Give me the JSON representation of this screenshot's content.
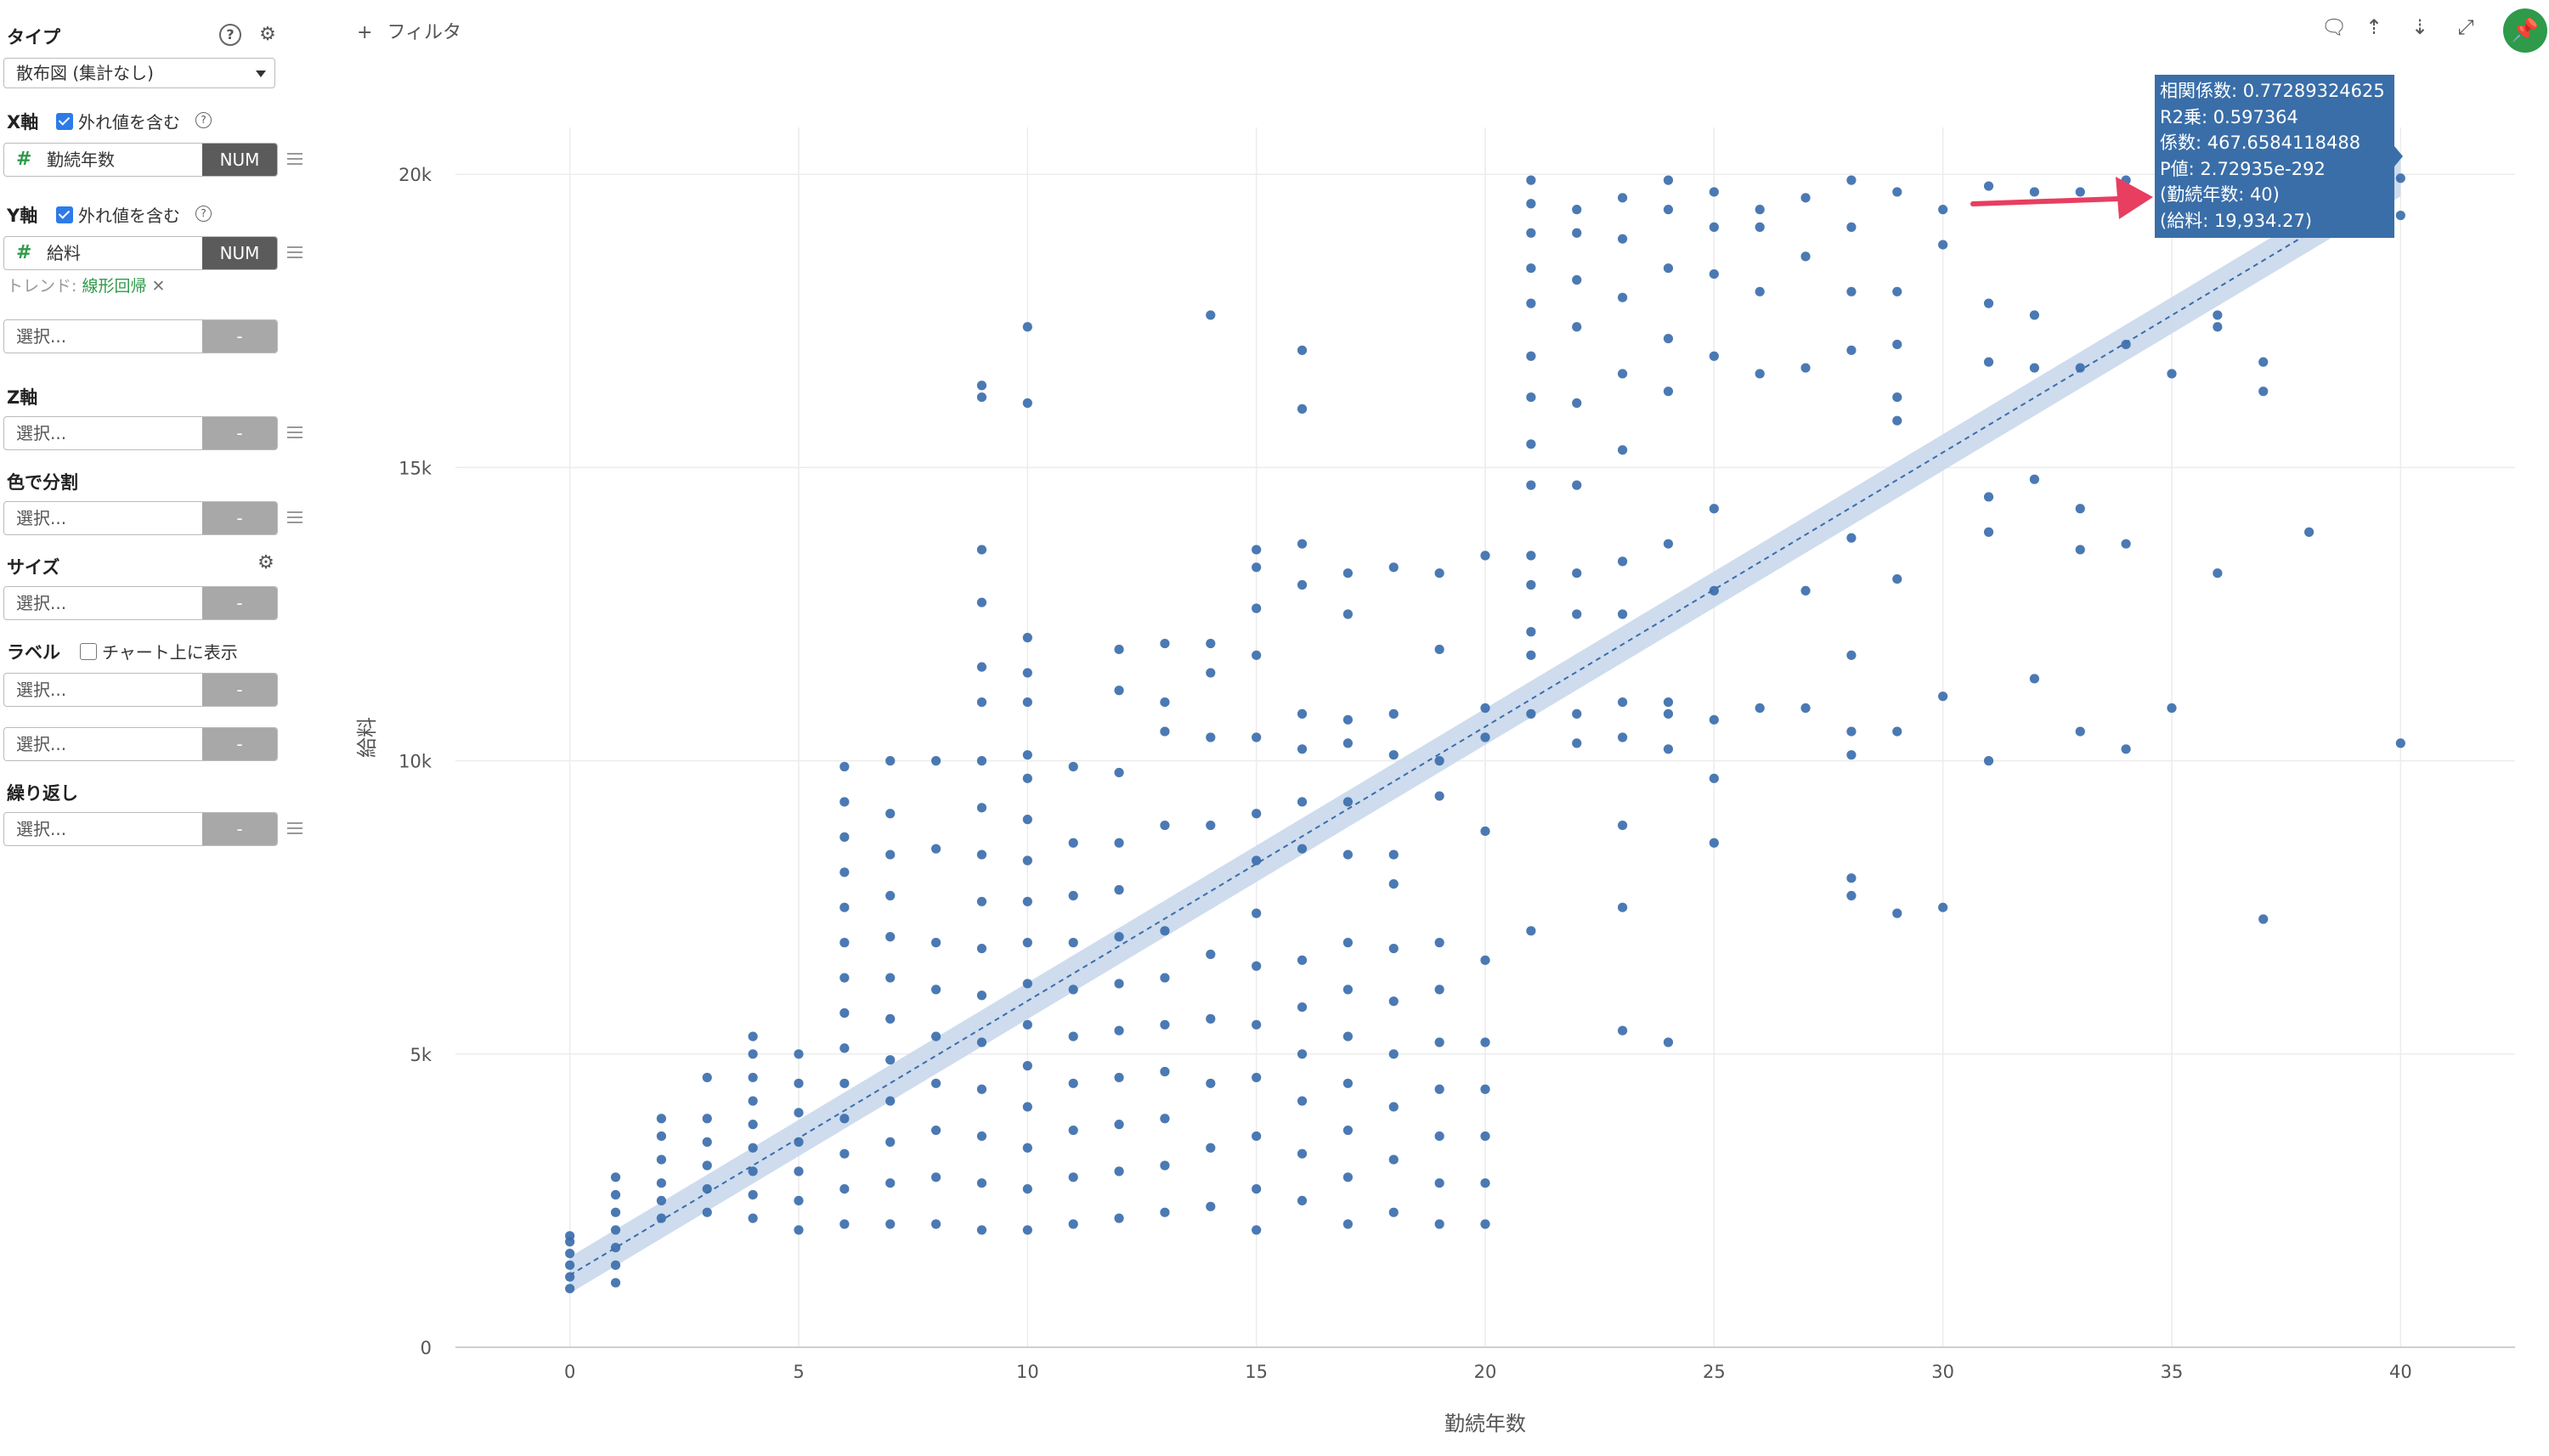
{
  "sidebar": {
    "type_section": {
      "title": "タイプ",
      "value": "散布図 (集計なし)"
    },
    "x_axis": {
      "title": "X軸",
      "include_outliers": "外れ値を含む",
      "column": "勤続年数",
      "col_type": "NUM"
    },
    "y_axis": {
      "title": "Y軸",
      "include_outliers": "外れ値を含む",
      "column": "給料",
      "col_type": "NUM"
    },
    "trend": {
      "label": "トレンド: ",
      "value": "線形回帰",
      "remove": "✕"
    },
    "extra_select": {
      "placeholder": "選択...",
      "tag": "-"
    },
    "z_axis": {
      "title": "Z軸",
      "placeholder": "選択...",
      "tag": "-"
    },
    "color_split": {
      "title": "色で分割",
      "placeholder": "選択...",
      "tag": "-"
    },
    "size": {
      "title": "サイズ",
      "placeholder": "選択...",
      "tag": "-"
    },
    "label": {
      "title": "ラベル",
      "show_on_chart": "チャート上に表示",
      "placeholder1": "選択...",
      "placeholder2": "選択...",
      "tag": "-"
    },
    "repeat": {
      "title": "繰り返し",
      "placeholder": "選択...",
      "tag": "-"
    }
  },
  "toolbar": {
    "filter_label": "フィルタ",
    "filter_plus": "+"
  },
  "tooltip": {
    "lines": [
      "相関係数: 0.77289324625",
      "R2乗: 0.597364",
      "係数: 467.6584118488",
      "P値: 2.72935e-292",
      "(勤続年数: 40)",
      "(給料: 19,934.27)"
    ]
  },
  "chart_data": {
    "type": "scatter",
    "xlabel": "勤続年数",
    "ylabel": "給料",
    "xlim": [
      -2.5,
      42.5
    ],
    "ylim": [
      0,
      20800
    ],
    "xticks": [
      0,
      5,
      10,
      15,
      20,
      25,
      30,
      35,
      40
    ],
    "yticks": [
      0,
      5000,
      10000,
      15000,
      20000
    ],
    "yticklabels": [
      "0",
      "5k",
      "10k",
      "15k",
      "20k"
    ],
    "grid": true,
    "point_color": "#3c6eac",
    "trend": {
      "type": "linear regression",
      "x": [
        0,
        40
      ],
      "y": [
        1230,
        19934
      ],
      "band_color": "#c9d8ec"
    },
    "points": [
      [
        0,
        1000
      ],
      [
        0,
        1200
      ],
      [
        0,
        1400
      ],
      [
        0,
        1600
      ],
      [
        0,
        1800
      ],
      [
        0,
        1900
      ],
      [
        1,
        1100
      ],
      [
        1,
        1400
      ],
      [
        1,
        1700
      ],
      [
        1,
        2000
      ],
      [
        1,
        2300
      ],
      [
        1,
        2600
      ],
      [
        1,
        2900
      ],
      [
        2,
        2200
      ],
      [
        2,
        2500
      ],
      [
        2,
        2800
      ],
      [
        2,
        3200
      ],
      [
        2,
        3600
      ],
      [
        2,
        3900
      ],
      [
        3,
        2300
      ],
      [
        3,
        2700
      ],
      [
        3,
        3100
      ],
      [
        3,
        3500
      ],
      [
        3,
        3900
      ],
      [
        3,
        4600
      ],
      [
        4,
        2200
      ],
      [
        4,
        2600
      ],
      [
        4,
        3000
      ],
      [
        4,
        3400
      ],
      [
        4,
        3800
      ],
      [
        4,
        4200
      ],
      [
        4,
        4600
      ],
      [
        4,
        5000
      ],
      [
        4,
        5300
      ],
      [
        5,
        2000
      ],
      [
        5,
        2500
      ],
      [
        5,
        3000
      ],
      [
        5,
        3500
      ],
      [
        5,
        4000
      ],
      [
        5,
        4500
      ],
      [
        5,
        5000
      ],
      [
        6,
        2100
      ],
      [
        6,
        2700
      ],
      [
        6,
        3300
      ],
      [
        6,
        3900
      ],
      [
        6,
        4500
      ],
      [
        6,
        5100
      ],
      [
        6,
        5700
      ],
      [
        6,
        6300
      ],
      [
        6,
        6900
      ],
      [
        6,
        7500
      ],
      [
        6,
        8100
      ],
      [
        6,
        8700
      ],
      [
        6,
        9300
      ],
      [
        6,
        9900
      ],
      [
        7,
        2100
      ],
      [
        7,
        2800
      ],
      [
        7,
        3500
      ],
      [
        7,
        4200
      ],
      [
        7,
        4900
      ],
      [
        7,
        5600
      ],
      [
        7,
        6300
      ],
      [
        7,
        7000
      ],
      [
        7,
        7700
      ],
      [
        7,
        8400
      ],
      [
        7,
        9100
      ],
      [
        7,
        10000
      ],
      [
        8,
        2100
      ],
      [
        8,
        2900
      ],
      [
        8,
        3700
      ],
      [
        8,
        4500
      ],
      [
        8,
        5300
      ],
      [
        8,
        6100
      ],
      [
        8,
        6900
      ],
      [
        8,
        8500
      ],
      [
        8,
        10000
      ],
      [
        9,
        2000
      ],
      [
        9,
        2800
      ],
      [
        9,
        3600
      ],
      [
        9,
        4400
      ],
      [
        9,
        5200
      ],
      [
        9,
        6000
      ],
      [
        9,
        6800
      ],
      [
        9,
        7600
      ],
      [
        9,
        8400
      ],
      [
        9,
        9200
      ],
      [
        9,
        10000
      ],
      [
        9,
        11000
      ],
      [
        9,
        11600
      ],
      [
        9,
        12700
      ],
      [
        9,
        13600
      ],
      [
        9,
        16200
      ],
      [
        9,
        16400
      ],
      [
        10,
        2000
      ],
      [
        10,
        2700
      ],
      [
        10,
        3400
      ],
      [
        10,
        4100
      ],
      [
        10,
        4800
      ],
      [
        10,
        5500
      ],
      [
        10,
        6200
      ],
      [
        10,
        6900
      ],
      [
        10,
        7600
      ],
      [
        10,
        8300
      ],
      [
        10,
        9000
      ],
      [
        10,
        9700
      ],
      [
        10,
        10100
      ],
      [
        10,
        11000
      ],
      [
        10,
        11500
      ],
      [
        10,
        12100
      ],
      [
        10,
        16100
      ],
      [
        10,
        17400
      ],
      [
        11,
        2100
      ],
      [
        11,
        2900
      ],
      [
        11,
        3700
      ],
      [
        11,
        4500
      ],
      [
        11,
        5300
      ],
      [
        11,
        6100
      ],
      [
        11,
        6900
      ],
      [
        11,
        7700
      ],
      [
        11,
        8600
      ],
      [
        11,
        9900
      ],
      [
        12,
        2200
      ],
      [
        12,
        3000
      ],
      [
        12,
        3800
      ],
      [
        12,
        4600
      ],
      [
        12,
        5400
      ],
      [
        12,
        6200
      ],
      [
        12,
        7000
      ],
      [
        12,
        7800
      ],
      [
        12,
        8600
      ],
      [
        12,
        9800
      ],
      [
        12,
        11200
      ],
      [
        12,
        11900
      ],
      [
        13,
        2300
      ],
      [
        13,
        3100
      ],
      [
        13,
        3900
      ],
      [
        13,
        4700
      ],
      [
        13,
        5500
      ],
      [
        13,
        6300
      ],
      [
        13,
        7100
      ],
      [
        13,
        8900
      ],
      [
        13,
        10500
      ],
      [
        13,
        11000
      ],
      [
        13,
        12000
      ],
      [
        14,
        2400
      ],
      [
        14,
        3400
      ],
      [
        14,
        4500
      ],
      [
        14,
        5600
      ],
      [
        14,
        6700
      ],
      [
        14,
        8900
      ],
      [
        14,
        10400
      ],
      [
        14,
        11500
      ],
      [
        14,
        12000
      ],
      [
        14,
        17600
      ],
      [
        15,
        2000
      ],
      [
        15,
        2700
      ],
      [
        15,
        3600
      ],
      [
        15,
        4600
      ],
      [
        15,
        5500
      ],
      [
        15,
        6500
      ],
      [
        15,
        7400
      ],
      [
        15,
        8300
      ],
      [
        15,
        9100
      ],
      [
        15,
        10400
      ],
      [
        15,
        11800
      ],
      [
        15,
        12600
      ],
      [
        15,
        13300
      ],
      [
        15,
        13600
      ],
      [
        16,
        2500
      ],
      [
        16,
        3300
      ],
      [
        16,
        4200
      ],
      [
        16,
        5000
      ],
      [
        16,
        5800
      ],
      [
        16,
        6600
      ],
      [
        16,
        8500
      ],
      [
        16,
        9300
      ],
      [
        16,
        10200
      ],
      [
        16,
        10800
      ],
      [
        16,
        13000
      ],
      [
        16,
        13700
      ],
      [
        16,
        16000
      ],
      [
        16,
        17000
      ],
      [
        17,
        2100
      ],
      [
        17,
        2900
      ],
      [
        17,
        3700
      ],
      [
        17,
        4500
      ],
      [
        17,
        5300
      ],
      [
        17,
        6100
      ],
      [
        17,
        6900
      ],
      [
        17,
        8400
      ],
      [
        17,
        9300
      ],
      [
        17,
        10300
      ],
      [
        17,
        10700
      ],
      [
        17,
        12500
      ],
      [
        17,
        13200
      ],
      [
        18,
        2300
      ],
      [
        18,
        3200
      ],
      [
        18,
        4100
      ],
      [
        18,
        5000
      ],
      [
        18,
        5900
      ],
      [
        18,
        6800
      ],
      [
        18,
        7900
      ],
      [
        18,
        8400
      ],
      [
        18,
        10100
      ],
      [
        18,
        10800
      ],
      [
        18,
        13300
      ],
      [
        19,
        2100
      ],
      [
        19,
        2800
      ],
      [
        19,
        3600
      ],
      [
        19,
        4400
      ],
      [
        19,
        5200
      ],
      [
        19,
        6100
      ],
      [
        19,
        6900
      ],
      [
        19,
        9400
      ],
      [
        19,
        10000
      ],
      [
        19,
        11900
      ],
      [
        19,
        13200
      ],
      [
        20,
        2100
      ],
      [
        20,
        2800
      ],
      [
        20,
        3600
      ],
      [
        20,
        4400
      ],
      [
        20,
        5200
      ],
      [
        20,
        6600
      ],
      [
        20,
        8800
      ],
      [
        20,
        10400
      ],
      [
        20,
        10900
      ],
      [
        20,
        13500
      ],
      [
        21,
        7100
      ],
      [
        21,
        10800
      ],
      [
        21,
        11800
      ],
      [
        21,
        12200
      ],
      [
        21,
        13000
      ],
      [
        21,
        13500
      ],
      [
        21,
        14700
      ],
      [
        21,
        15400
      ],
      [
        21,
        16200
      ],
      [
        21,
        16900
      ],
      [
        21,
        17800
      ],
      [
        21,
        18400
      ],
      [
        21,
        19000
      ],
      [
        21,
        19500
      ],
      [
        21,
        19900
      ],
      [
        22,
        10300
      ],
      [
        22,
        10800
      ],
      [
        22,
        12500
      ],
      [
        22,
        13200
      ],
      [
        22,
        14700
      ],
      [
        22,
        16100
      ],
      [
        22,
        17400
      ],
      [
        22,
        18200
      ],
      [
        22,
        19000
      ],
      [
        22,
        19400
      ],
      [
        23,
        5400
      ],
      [
        23,
        7500
      ],
      [
        23,
        8900
      ],
      [
        23,
        10400
      ],
      [
        23,
        11000
      ],
      [
        23,
        12500
      ],
      [
        23,
        13400
      ],
      [
        23,
        15300
      ],
      [
        23,
        16600
      ],
      [
        23,
        17900
      ],
      [
        23,
        18900
      ],
      [
        23,
        19600
      ],
      [
        24,
        5200
      ],
      [
        24,
        10200
      ],
      [
        24,
        10800
      ],
      [
        24,
        11000
      ],
      [
        24,
        13700
      ],
      [
        24,
        16300
      ],
      [
        24,
        17200
      ],
      [
        24,
        18400
      ],
      [
        24,
        19400
      ],
      [
        24,
        19900
      ],
      [
        25,
        8600
      ],
      [
        25,
        9700
      ],
      [
        25,
        10700
      ],
      [
        25,
        12900
      ],
      [
        25,
        14300
      ],
      [
        25,
        16900
      ],
      [
        25,
        18300
      ],
      [
        25,
        19100
      ],
      [
        25,
        19700
      ],
      [
        26,
        10900
      ],
      [
        26,
        16600
      ],
      [
        26,
        18000
      ],
      [
        26,
        19100
      ],
      [
        26,
        19400
      ],
      [
        27,
        10900
      ],
      [
        27,
        12900
      ],
      [
        27,
        16700
      ],
      [
        27,
        18600
      ],
      [
        27,
        19600
      ],
      [
        28,
        7700
      ],
      [
        28,
        8000
      ],
      [
        28,
        10100
      ],
      [
        28,
        10500
      ],
      [
        28,
        11800
      ],
      [
        28,
        13800
      ],
      [
        28,
        17000
      ],
      [
        28,
        18000
      ],
      [
        28,
        19100
      ],
      [
        28,
        19900
      ],
      [
        29,
        7400
      ],
      [
        29,
        10500
      ],
      [
        29,
        13100
      ],
      [
        29,
        15800
      ],
      [
        29,
        16200
      ],
      [
        29,
        17100
      ],
      [
        29,
        18000
      ],
      [
        29,
        19700
      ],
      [
        30,
        7500
      ],
      [
        30,
        11100
      ],
      [
        30,
        18800
      ],
      [
        30,
        19400
      ],
      [
        31,
        10000
      ],
      [
        31,
        13900
      ],
      [
        31,
        14500
      ],
      [
        31,
        16800
      ],
      [
        31,
        17800
      ],
      [
        31,
        19800
      ],
      [
        32,
        11400
      ],
      [
        32,
        14800
      ],
      [
        32,
        16700
      ],
      [
        32,
        17600
      ],
      [
        32,
        19700
      ],
      [
        33,
        10500
      ],
      [
        33,
        13600
      ],
      [
        33,
        14300
      ],
      [
        33,
        16700
      ],
      [
        33,
        19700
      ],
      [
        34,
        10200
      ],
      [
        34,
        13700
      ],
      [
        34,
        17100
      ],
      [
        34,
        19900
      ],
      [
        35,
        10900
      ],
      [
        35,
        16600
      ],
      [
        36,
        13200
      ],
      [
        36,
        17400
      ],
      [
        36,
        17600
      ],
      [
        37,
        7300
      ],
      [
        37,
        16300
      ],
      [
        37,
        16800
      ],
      [
        38,
        13900
      ],
      [
        40,
        10300
      ],
      [
        40,
        19300
      ],
      [
        40,
        19934
      ]
    ]
  }
}
